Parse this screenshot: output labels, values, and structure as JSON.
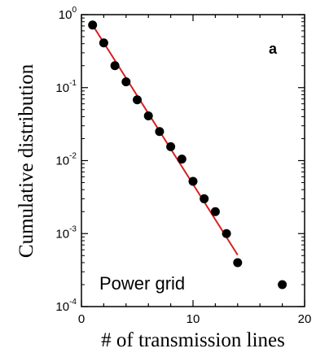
{
  "chart_data": {
    "type": "scatter",
    "xlabel": "# of transmission lines",
    "ylabel": "Cumulative distribution",
    "panel_label": "a",
    "annotation": "Power grid",
    "xlim": [
      0,
      20
    ],
    "ylim_log10": [
      -4,
      0
    ],
    "y_scale": "log",
    "grid": false,
    "x_ticks": [
      {
        "value": 0,
        "label": "0"
      },
      {
        "value": 10,
        "label": "10"
      },
      {
        "value": 20,
        "label": "20"
      }
    ],
    "y_ticks": [
      {
        "value": 1,
        "base": "10",
        "exp": "0"
      },
      {
        "value": 0.1,
        "base": "10",
        "exp": "-1"
      },
      {
        "value": 0.01,
        "base": "10",
        "exp": "-2"
      },
      {
        "value": 0.001,
        "base": "10",
        "exp": "-3"
      },
      {
        "value": 0.0001,
        "base": "10",
        "exp": "-4"
      }
    ],
    "series": [
      {
        "type": "scatter",
        "color": "#000000",
        "points": [
          {
            "x": 1,
            "y": 0.72
          },
          {
            "x": 2,
            "y": 0.41
          },
          {
            "x": 3,
            "y": 0.2
          },
          {
            "x": 4,
            "y": 0.12
          },
          {
            "x": 5,
            "y": 0.068
          },
          {
            "x": 6,
            "y": 0.041
          },
          {
            "x": 7,
            "y": 0.025
          },
          {
            "x": 8,
            "y": 0.0155
          },
          {
            "x": 9,
            "y": 0.0105
          },
          {
            "x": 10,
            "y": 0.0052
          },
          {
            "x": 11,
            "y": 0.003
          },
          {
            "x": 12,
            "y": 0.002
          },
          {
            "x": 13,
            "y": 0.001
          },
          {
            "x": 14,
            "y": 0.0004
          },
          {
            "x": 18,
            "y": 0.0002
          }
        ]
      },
      {
        "type": "line",
        "color": "#d62020",
        "points": [
          {
            "x": 1,
            "y": 0.72
          },
          {
            "x": 14,
            "y": 0.00051
          }
        ]
      }
    ]
  }
}
